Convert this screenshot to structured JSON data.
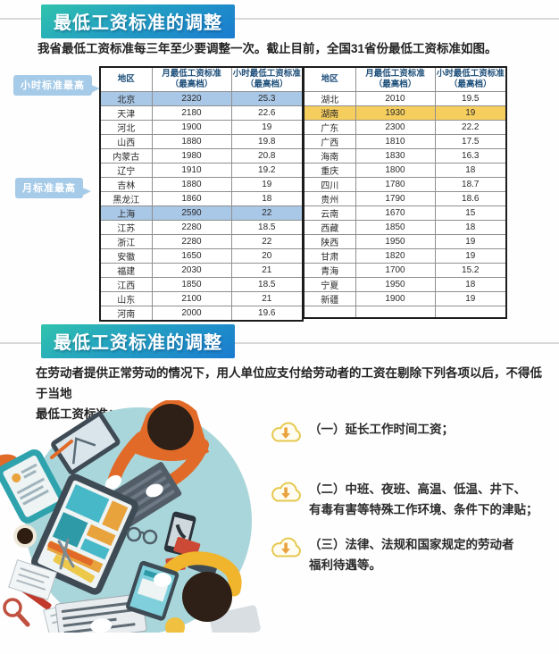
{
  "section1": {
    "badge": "最低工资标准的调整",
    "intro": "我省最低工资标准每三年至少要调整一次。截止目前，全国31省份最低工资标准如图。"
  },
  "callouts": {
    "hourly_highest": "小时标准最高",
    "monthly_highest": "月标准最高"
  },
  "wage_table": {
    "header": {
      "region": "地区",
      "monthly": "月最低工资标准\n（最高档）",
      "hourly": "小时最低工资标准\n（最高档）"
    },
    "left_rows": [
      {
        "region": "北京",
        "monthly": "2320",
        "hourly": "25.3",
        "highlight": "blue"
      },
      {
        "region": "天津",
        "monthly": "2180",
        "hourly": "22.6"
      },
      {
        "region": "河北",
        "monthly": "1900",
        "hourly": "19"
      },
      {
        "region": "山西",
        "monthly": "1880",
        "hourly": "19.8"
      },
      {
        "region": "内蒙古",
        "monthly": "1980",
        "hourly": "20.8"
      },
      {
        "region": "辽宁",
        "monthly": "1910",
        "hourly": "19.2"
      },
      {
        "region": "吉林",
        "monthly": "1880",
        "hourly": "19"
      },
      {
        "region": "黑龙江",
        "monthly": "1860",
        "hourly": "18"
      },
      {
        "region": "上海",
        "monthly": "2590",
        "hourly": "22",
        "highlight": "blue"
      },
      {
        "region": "江苏",
        "monthly": "2280",
        "hourly": "18.5"
      },
      {
        "region": "浙江",
        "monthly": "2280",
        "hourly": "22"
      },
      {
        "region": "安徽",
        "monthly": "1650",
        "hourly": "20"
      },
      {
        "region": "福建",
        "monthly": "2030",
        "hourly": "21"
      },
      {
        "region": "江西",
        "monthly": "1850",
        "hourly": "18.5"
      },
      {
        "region": "山东",
        "monthly": "2100",
        "hourly": "21"
      },
      {
        "region": "河南",
        "monthly": "2000",
        "hourly": "19.6"
      }
    ],
    "right_rows": [
      {
        "region": "湖北",
        "monthly": "2010",
        "hourly": "19.5"
      },
      {
        "region": "湖南",
        "monthly": "1930",
        "hourly": "19",
        "highlight": "yellow"
      },
      {
        "region": "广东",
        "monthly": "2300",
        "hourly": "22.2"
      },
      {
        "region": "广西",
        "monthly": "1810",
        "hourly": "17.5"
      },
      {
        "region": "海南",
        "monthly": "1830",
        "hourly": "16.3"
      },
      {
        "region": "重庆",
        "monthly": "1800",
        "hourly": "18"
      },
      {
        "region": "四川",
        "monthly": "1780",
        "hourly": "18.7"
      },
      {
        "region": "贵州",
        "monthly": "1790",
        "hourly": "18.6"
      },
      {
        "region": "云南",
        "monthly": "1670",
        "hourly": "15"
      },
      {
        "region": "西藏",
        "monthly": "1850",
        "hourly": "18"
      },
      {
        "region": "陕西",
        "monthly": "1950",
        "hourly": "19"
      },
      {
        "region": "甘肃",
        "monthly": "1820",
        "hourly": "19"
      },
      {
        "region": "青海",
        "monthly": "1700",
        "hourly": "15.2"
      },
      {
        "region": "宁夏",
        "monthly": "1950",
        "hourly": "18"
      },
      {
        "region": "新疆",
        "monthly": "1900",
        "hourly": "19"
      },
      {
        "region": "",
        "monthly": "",
        "hourly": ""
      }
    ]
  },
  "section2": {
    "badge": "最低工资标准的调整",
    "intro": "在劳动者提供正常劳动的情况下，用人单位应支付给劳动者的工资在剔除下列各项以后，不得低于当地\n最低工资标准："
  },
  "bullets": [
    {
      "text": "（一）延长工作时间工资；"
    },
    {
      "text": "（二）中班、夜班、高温、低温、井下、\n有毒有害等特殊工作环境、条件下的津贴；"
    },
    {
      "text": "（三）法律、法规和国家规定的劳动者\n福利待遇等。"
    }
  ],
  "icons": {
    "bullet_icon": "cloud-download-icon"
  },
  "colors": {
    "badge_gradient_start": "#30c3ad",
    "badge_gradient_end": "#1a7bd0",
    "highlight_blue": "#a9c7e6",
    "highlight_yellow": "#f6ce5e",
    "callout_bg": "#a6cbe8",
    "table_header_text": "#1d4e79",
    "illustration_table": "#a9d6da"
  }
}
